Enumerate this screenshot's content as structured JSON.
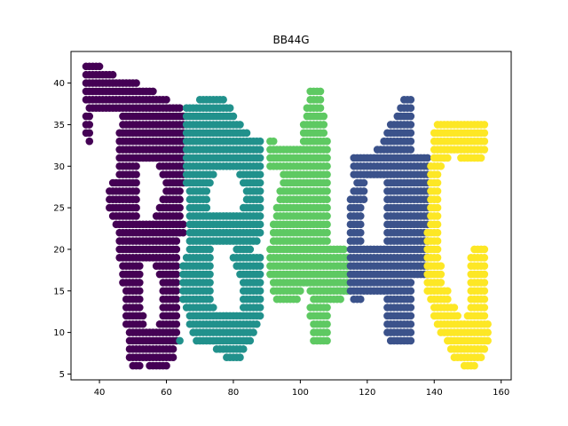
{
  "chart_data": {
    "type": "scatter",
    "title": "BB44G",
    "xlabel": "",
    "ylabel": "",
    "xlim": [
      31.5,
      163
    ],
    "ylim": [
      4.3,
      43.8
    ],
    "xticks": [
      40,
      60,
      80,
      100,
      120,
      140,
      160
    ],
    "yticks": [
      5,
      10,
      15,
      20,
      25,
      30,
      35,
      40
    ],
    "grid": false,
    "legend": "none",
    "series": [
      {
        "color": "#440154",
        "runs": [
          [
            42,
            36,
            40
          ],
          [
            41,
            36,
            44
          ],
          [
            40,
            36,
            51
          ],
          [
            39,
            36,
            56
          ],
          [
            38,
            36,
            60
          ],
          [
            37,
            37,
            64
          ],
          [
            36,
            36,
            37
          ],
          [
            36,
            47,
            65
          ],
          [
            35,
            36,
            37
          ],
          [
            35,
            47,
            65
          ],
          [
            34,
            36,
            37
          ],
          [
            34,
            46,
            65
          ],
          [
            33,
            37,
            37
          ],
          [
            33,
            46,
            65
          ],
          [
            32,
            46,
            65
          ],
          [
            31,
            46,
            65
          ],
          [
            30,
            46,
            51
          ],
          [
            30,
            58,
            65
          ],
          [
            29,
            46,
            51
          ],
          [
            29,
            59,
            65
          ],
          [
            28,
            44,
            51
          ],
          [
            28,
            60,
            65
          ],
          [
            27,
            43,
            51
          ],
          [
            27,
            60,
            64
          ],
          [
            26,
            43,
            51
          ],
          [
            26,
            59,
            64
          ],
          [
            25,
            43,
            51
          ],
          [
            25,
            58,
            64
          ],
          [
            24,
            44,
            51
          ],
          [
            24,
            57,
            64
          ],
          [
            23,
            45,
            65
          ],
          [
            22,
            46,
            65
          ],
          [
            21,
            46,
            63
          ],
          [
            20,
            46,
            63
          ],
          [
            19,
            46,
            63
          ],
          [
            18,
            47,
            52
          ],
          [
            18,
            57,
            63
          ],
          [
            17,
            47,
            52
          ],
          [
            17,
            58,
            63
          ],
          [
            16,
            47,
            52
          ],
          [
            16,
            59,
            63
          ],
          [
            15,
            48,
            52
          ],
          [
            15,
            59,
            63
          ],
          [
            14,
            48,
            52
          ],
          [
            14,
            59,
            63
          ],
          [
            13,
            48,
            52
          ],
          [
            13,
            59,
            63
          ],
          [
            12,
            48,
            53
          ],
          [
            12,
            59,
            63
          ],
          [
            11,
            48,
            53
          ],
          [
            11,
            58,
            63
          ],
          [
            10,
            49,
            63
          ],
          [
            9,
            49,
            63
          ],
          [
            8,
            49,
            62
          ],
          [
            7,
            49,
            62
          ],
          [
            6,
            50,
            52
          ],
          [
            6,
            55,
            60
          ]
        ]
      },
      {
        "color": "#21918c",
        "runs": [
          [
            38,
            70,
            77
          ],
          [
            37,
            66,
            79
          ],
          [
            36,
            66,
            80
          ],
          [
            35,
            66,
            82
          ],
          [
            34,
            66,
            84
          ],
          [
            33,
            66,
            88
          ],
          [
            32,
            66,
            88
          ],
          [
            31,
            66,
            88
          ],
          [
            30,
            66,
            88
          ],
          [
            29,
            66,
            74
          ],
          [
            29,
            82,
            88
          ],
          [
            28,
            66,
            73
          ],
          [
            28,
            83,
            88
          ],
          [
            27,
            67,
            72
          ],
          [
            27,
            84,
            88
          ],
          [
            26,
            67,
            72
          ],
          [
            26,
            84,
            88
          ],
          [
            25,
            67,
            72
          ],
          [
            25,
            83,
            88
          ],
          [
            24,
            67,
            88
          ],
          [
            23,
            67,
            88
          ],
          [
            22,
            67,
            88
          ],
          [
            21,
            67,
            87
          ],
          [
            20,
            67,
            73
          ],
          [
            20,
            81,
            85
          ],
          [
            19,
            66,
            73
          ],
          [
            19,
            80,
            88
          ],
          [
            18,
            65,
            73
          ],
          [
            18,
            81,
            88
          ],
          [
            17,
            65,
            73
          ],
          [
            17,
            82,
            88
          ],
          [
            16,
            65,
            73
          ],
          [
            16,
            83,
            88
          ],
          [
            15,
            65,
            73
          ],
          [
            15,
            83,
            88
          ],
          [
            14,
            65,
            73
          ],
          [
            14,
            83,
            88
          ],
          [
            13,
            66,
            74
          ],
          [
            13,
            83,
            88
          ],
          [
            12,
            67,
            88
          ],
          [
            11,
            67,
            87
          ],
          [
            10,
            68,
            86
          ],
          [
            9,
            64,
            64
          ],
          [
            9,
            69,
            85
          ],
          [
            8,
            75,
            83
          ],
          [
            7,
            78,
            82
          ]
        ]
      },
      {
        "color": "#5ec962",
        "runs": [
          [
            39,
            103,
            106
          ],
          [
            38,
            103,
            106
          ],
          [
            37,
            102,
            106
          ],
          [
            36,
            102,
            107
          ],
          [
            35,
            101,
            107
          ],
          [
            34,
            101,
            107
          ],
          [
            33,
            91,
            92
          ],
          [
            33,
            101,
            108
          ],
          [
            32,
            91,
            108
          ],
          [
            31,
            91,
            108
          ],
          [
            30,
            91,
            108
          ],
          [
            29,
            95,
            108
          ],
          [
            28,
            95,
            108
          ],
          [
            27,
            94,
            108
          ],
          [
            26,
            94,
            108
          ],
          [
            25,
            93,
            108
          ],
          [
            24,
            93,
            108
          ],
          [
            23,
            92,
            108
          ],
          [
            22,
            92,
            108
          ],
          [
            21,
            92,
            108
          ],
          [
            20,
            91,
            113
          ],
          [
            19,
            91,
            114
          ],
          [
            18,
            91,
            114
          ],
          [
            17,
            91,
            114
          ],
          [
            16,
            92,
            114
          ],
          [
            15,
            92,
            100
          ],
          [
            15,
            103,
            114
          ],
          [
            14,
            93,
            99
          ],
          [
            14,
            104,
            112
          ],
          [
            13,
            103,
            108
          ],
          [
            12,
            103,
            108
          ],
          [
            11,
            104,
            108
          ],
          [
            10,
            104,
            108
          ],
          [
            9,
            104,
            108
          ]
        ]
      },
      {
        "color": "#3b528b",
        "runs": [
          [
            38,
            131,
            133
          ],
          [
            37,
            130,
            133
          ],
          [
            36,
            129,
            133
          ],
          [
            35,
            127,
            133
          ],
          [
            34,
            126,
            133
          ],
          [
            33,
            125,
            133
          ],
          [
            32,
            123,
            133
          ],
          [
            31,
            116,
            138
          ],
          [
            30,
            116,
            138
          ],
          [
            29,
            116,
            138
          ],
          [
            28,
            117,
            119
          ],
          [
            28,
            126,
            138
          ],
          [
            27,
            116,
            119
          ],
          [
            27,
            126,
            138
          ],
          [
            26,
            115,
            119
          ],
          [
            26,
            126,
            138
          ],
          [
            25,
            115,
            118
          ],
          [
            25,
            126,
            138
          ],
          [
            24,
            115,
            118
          ],
          [
            24,
            126,
            138
          ],
          [
            23,
            115,
            118
          ],
          [
            23,
            126,
            138
          ],
          [
            22,
            115,
            118
          ],
          [
            22,
            126,
            138
          ],
          [
            21,
            115,
            118
          ],
          [
            21,
            126,
            138
          ],
          [
            20,
            115,
            138
          ],
          [
            19,
            115,
            138
          ],
          [
            18,
            115,
            138
          ],
          [
            17,
            115,
            138
          ],
          [
            16,
            115,
            133
          ],
          [
            15,
            115,
            133
          ],
          [
            14,
            116,
            118
          ],
          [
            14,
            126,
            133
          ],
          [
            13,
            126,
            133
          ],
          [
            12,
            126,
            133
          ],
          [
            11,
            126,
            133
          ],
          [
            10,
            126,
            133
          ],
          [
            9,
            127,
            133
          ]
        ]
      },
      {
        "color": "#fde725",
        "runs": [
          [
            35,
            141,
            155
          ],
          [
            34,
            140,
            155
          ],
          [
            33,
            140,
            155
          ],
          [
            32,
            140,
            155
          ],
          [
            31,
            140,
            144
          ],
          [
            31,
            148,
            154
          ],
          [
            30,
            139,
            142
          ],
          [
            29,
            139,
            141
          ],
          [
            28,
            139,
            141
          ],
          [
            27,
            139,
            141
          ],
          [
            26,
            139,
            141
          ],
          [
            25,
            139,
            141
          ],
          [
            24,
            139,
            141
          ],
          [
            23,
            139,
            141
          ],
          [
            22,
            138,
            141
          ],
          [
            21,
            138,
            141
          ],
          [
            20,
            138,
            141
          ],
          [
            20,
            152,
            155
          ],
          [
            19,
            138,
            141
          ],
          [
            19,
            151,
            155
          ],
          [
            18,
            138,
            142
          ],
          [
            18,
            151,
            155
          ],
          [
            17,
            138,
            142
          ],
          [
            17,
            151,
            155
          ],
          [
            16,
            138,
            142
          ],
          [
            16,
            151,
            155
          ],
          [
            15,
            138,
            144
          ],
          [
            15,
            151,
            155
          ],
          [
            14,
            139,
            144
          ],
          [
            14,
            151,
            155
          ],
          [
            13,
            140,
            146
          ],
          [
            13,
            151,
            155
          ],
          [
            12,
            140,
            147
          ],
          [
            12,
            150,
            155
          ],
          [
            11,
            141,
            156
          ],
          [
            10,
            142,
            156
          ],
          [
            9,
            144,
            156
          ],
          [
            8,
            145,
            155
          ],
          [
            7,
            146,
            154
          ],
          [
            6,
            149,
            152
          ]
        ]
      }
    ]
  }
}
